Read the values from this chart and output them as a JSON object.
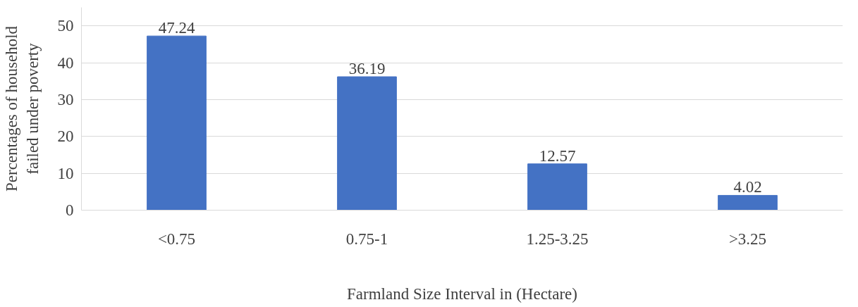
{
  "chart_data": {
    "type": "bar",
    "xlabel": "Farmland Size Interval in (Hectare)",
    "ylabel": "Percentages of household\nfailed under poverty",
    "categories": [
      "<0.75",
      "0.75-1",
      "1.25-3.25",
      ">3.25"
    ],
    "values": [
      47.24,
      36.19,
      12.57,
      4.02
    ],
    "color": "#4472c4",
    "ylim": [
      0,
      55
    ],
    "yticks": [
      0,
      10,
      20,
      30,
      40,
      50
    ],
    "grid": "y",
    "data_labels": true
  }
}
